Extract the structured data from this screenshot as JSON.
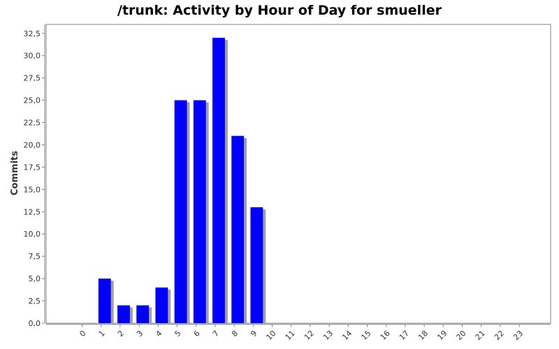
{
  "chart_data": {
    "type": "bar",
    "title": "/trunk: Activity by Hour of Day for smueller",
    "xlabel": "",
    "ylabel": "Commits",
    "categories": [
      "0",
      "1",
      "2",
      "3",
      "4",
      "5",
      "6",
      "7",
      "8",
      "9",
      "10",
      "11",
      "12",
      "13",
      "14",
      "15",
      "16",
      "17",
      "18",
      "19",
      "20",
      "21",
      "22",
      "23"
    ],
    "values": [
      0,
      5,
      2,
      2,
      4,
      25,
      25,
      32,
      21,
      13,
      0,
      0,
      0,
      0,
      0,
      0,
      0,
      0,
      0,
      0,
      0,
      0,
      0,
      0
    ],
    "ylim": [
      0,
      33.5
    ],
    "yticks": [
      "0,0",
      "2,5",
      "5,0",
      "7,5",
      "10,0",
      "12,5",
      "15,0",
      "17,5",
      "20,0",
      "22,5",
      "25,0",
      "27,5",
      "30,0",
      "32,5"
    ],
    "bar_color": "#0000ff",
    "shadow_color": "#a0a0a0",
    "grid": false,
    "legend": "none"
  }
}
